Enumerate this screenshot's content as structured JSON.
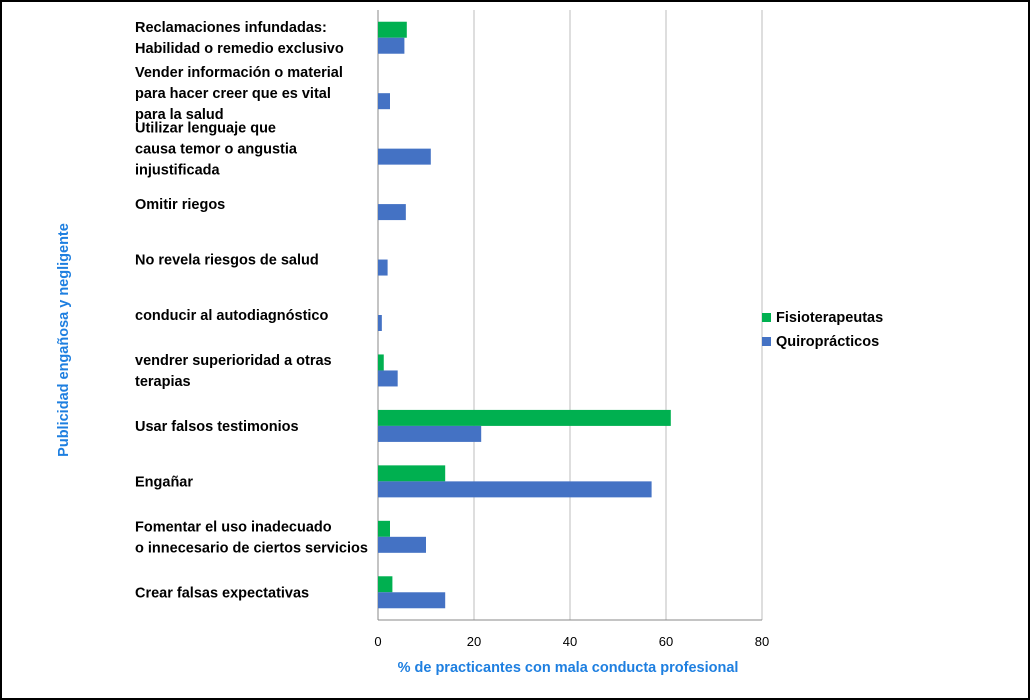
{
  "chart_data": {
    "type": "bar",
    "orientation": "horizontal",
    "categories": [
      [
        "Reclamaciones infundadas:",
        "Habilidad o remedio exclusivo"
      ],
      [
        "Vender información o material",
        "para hacer creer que es vital",
        "para la salud"
      ],
      [
        "Utilizar lenguaje que",
        "causa temor o angustia",
        "injustificada"
      ],
      [
        "Omitir riegos"
      ],
      [
        "No revela riesgos de salud"
      ],
      [
        "conducir al autodiagnóstico"
      ],
      [
        "vendrer superioridad a otras",
        "terapias"
      ],
      [
        "Usar falsos testimonios"
      ],
      [
        "Engañar"
      ],
      [
        "Fomentar el uso inadecuado",
        "o innecesario de ciertos servicios"
      ],
      [
        "Crear falsas expectativas"
      ]
    ],
    "series": [
      {
        "name": "Fisioterapeutas",
        "color": "#00b050",
        "values": [
          6,
          0,
          0,
          0,
          0,
          0,
          1.2,
          61,
          14,
          2.5,
          3
        ]
      },
      {
        "name": "Quiroprácticos",
        "color": "#4472c4",
        "values": [
          5.5,
          2.5,
          11,
          5.8,
          2,
          0.8,
          4.1,
          21.5,
          57,
          10,
          14
        ]
      }
    ],
    "xlim": [
      0,
      80
    ],
    "xticks": [
      0,
      20,
      40,
      60,
      80
    ],
    "xlabel": "% de practicantes con mala conducta profesional",
    "ylabel": "Publicidad engañosa y negligente",
    "axis_title_color": "#1e7fe0",
    "grid": true,
    "legend_position": "right"
  }
}
